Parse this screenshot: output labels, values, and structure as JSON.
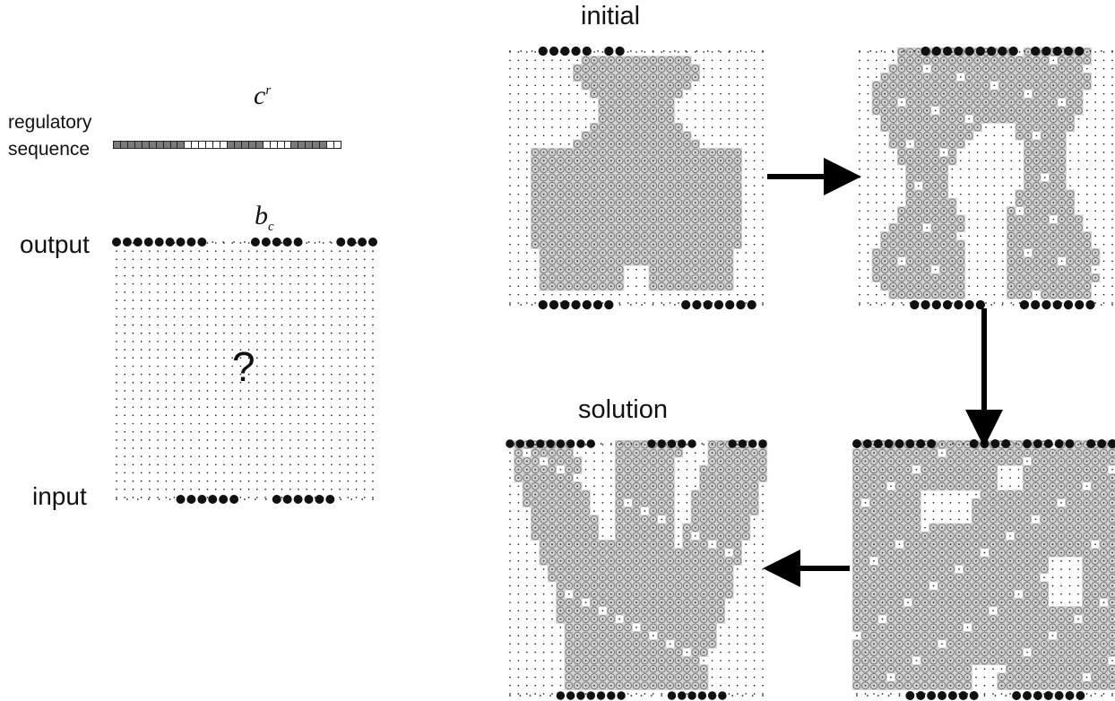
{
  "labels": {
    "regulatory_line1": "regulatory",
    "regulatory_line2": "sequence",
    "cr_base": "c",
    "cr_sup": "r",
    "bc_base": "b",
    "bc_sub": "c",
    "output": "output",
    "input": "input",
    "question": "?",
    "initial": "initial",
    "solution": "solution"
  },
  "regulatory_sequence": [
    "on",
    "on",
    "on",
    "on",
    "on",
    "on",
    "on",
    "on",
    "on",
    "on",
    "off",
    "off",
    "off",
    "off",
    "off",
    "off",
    "on",
    "on",
    "on",
    "on",
    "on",
    "off",
    "off",
    "off",
    "off",
    "on",
    "on",
    "on",
    "on",
    "on",
    "off",
    "off"
  ],
  "colors": {
    "sequence_on": "#7a7a7a",
    "sequence_off": "#ffffff",
    "cell_fill": "#d2d2d2",
    "node": "#111111",
    "arrow": "#000000"
  },
  "blank_grid": {
    "output_pattern": "111111111....11111...1111",
    "input_pattern": "......111111...111111...."
  },
  "states": [
    {
      "id": "initial",
      "top_pattern": "...11111.11.............",
      "bottom_pattern": "...1111111......1111111.",
      "activity": "initial"
    },
    {
      "id": "step2",
      "top_pattern": "......111111111.11111...",
      "bottom_pattern": ".....1111111...1111111..",
      "activity": "split"
    },
    {
      "id": "step3",
      "top_pattern": "11111111...1111.11111.111",
      "bottom_pattern": ".....1111111...1111111...",
      "activity": "dense"
    },
    {
      "id": "solution",
      "top_pattern": "111111111.....11111...1111",
      "bottom_pattern": ".....1111111....111111....",
      "activity": "solution"
    }
  ]
}
